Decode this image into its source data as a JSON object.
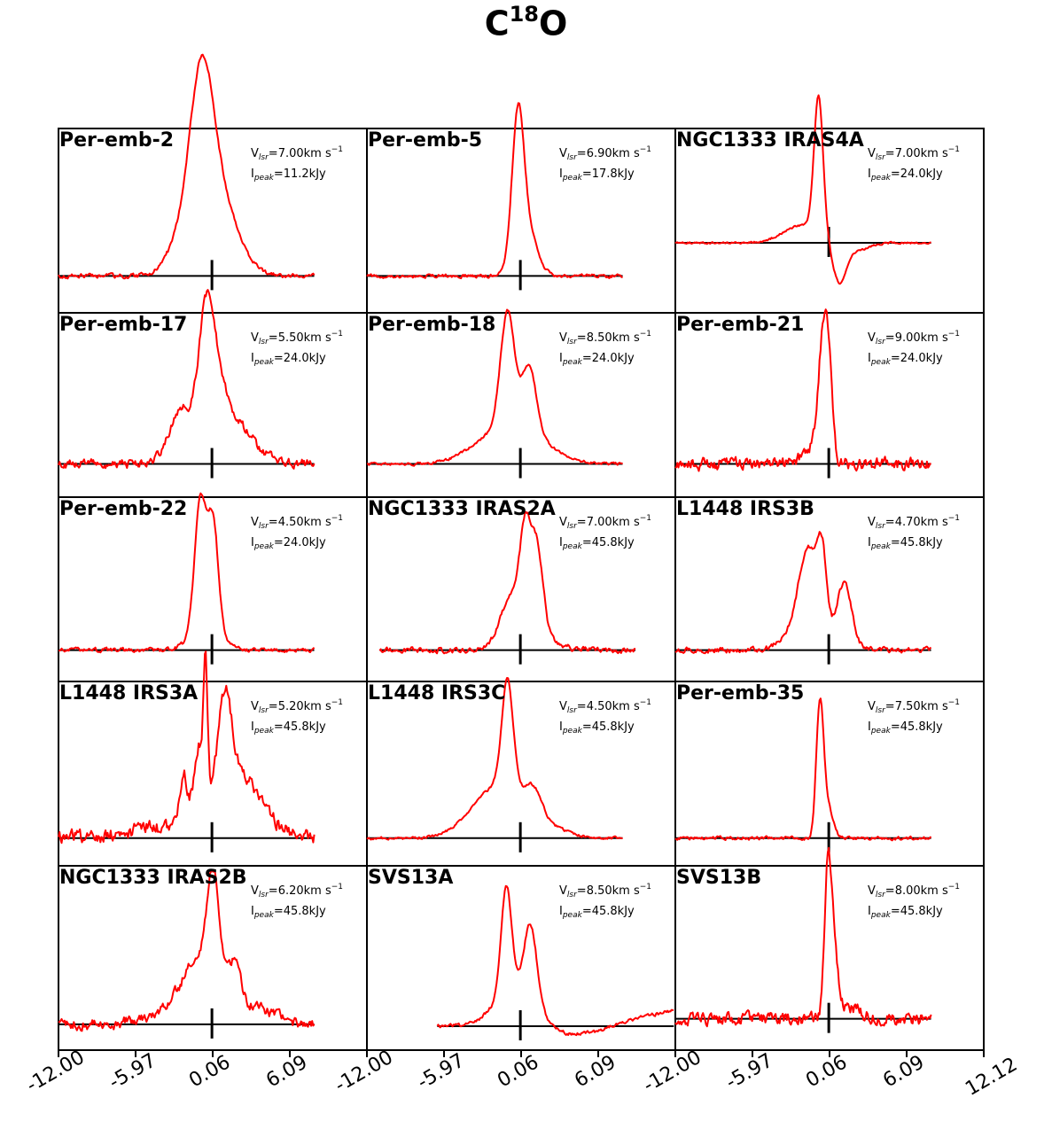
{
  "title": {
    "main": "C",
    "sup": "18",
    "tail": "O"
  },
  "chart_data": {
    "type": "line",
    "layout": {
      "rows": 5,
      "cols": 3
    },
    "line_color": "#ff0000",
    "x_ticks": {
      "panel_labels": [
        "-12.00",
        "-5.97",
        "0.06",
        "6.09"
      ],
      "last_label": "12.12"
    },
    "xlim": [
      -12.0,
      12.12
    ],
    "panels": [
      {
        "name": "Per-emb-2",
        "vlsr": "7.00",
        "ipeak": "11.2",
        "baseline": 0.8,
        "xrange": [
          -12,
          8
        ],
        "components": [
          [
            -0.8,
            0.9,
            0.93
          ],
          [
            0.4,
            1.5,
            0.55
          ],
          [
            -2.0,
            1.3,
            0.25
          ]
        ],
        "noise": 0.012,
        "seed": 2
      },
      {
        "name": "Per-emb-5",
        "vlsr": "6.90",
        "ipeak": "17.8",
        "baseline": 0.8,
        "xrange": [
          -12,
          8
        ],
        "components": [
          [
            -0.2,
            0.45,
            0.9
          ],
          [
            0.4,
            0.8,
            0.35
          ]
        ],
        "noise": 0.01,
        "seed": 5
      },
      {
        "name": "NGC1333 IRAS4A",
        "vlsr": "7.00",
        "ipeak": "24.0",
        "baseline": 0.62,
        "xrange": [
          -12,
          8
        ],
        "components": [
          [
            -0.8,
            0.35,
            0.92
          ],
          [
            -2.0,
            1.5,
            0.12
          ],
          [
            0.8,
            0.5,
            -0.25
          ],
          [
            1.8,
            1.2,
            -0.06
          ]
        ],
        "noise": 0.006,
        "seed": 4
      },
      {
        "name": "Per-emb-17",
        "vlsr": "5.50",
        "ipeak": "24.0",
        "baseline": 0.82,
        "xrange": [
          -12,
          8
        ],
        "components": [
          [
            -0.5,
            0.6,
            0.75
          ],
          [
            0.3,
            0.7,
            0.3
          ],
          [
            -2.5,
            0.8,
            0.3
          ],
          [
            1.5,
            1.5,
            0.22
          ],
          [
            0.0,
            2.5,
            0.12
          ]
        ],
        "noise": 0.025,
        "seed": 17
      },
      {
        "name": "Per-emb-18",
        "vlsr": "8.50",
        "ipeak": "24.0",
        "baseline": 0.82,
        "xrange": [
          -12,
          8
        ],
        "components": [
          [
            -1.0,
            0.55,
            0.78
          ],
          [
            0.7,
            0.55,
            0.45
          ],
          [
            -1.5,
            2.2,
            0.2
          ],
          [
            1.0,
            2.0,
            0.1
          ]
        ],
        "noise": 0.008,
        "seed": 18
      },
      {
        "name": "Per-emb-21",
        "vlsr": "9.00",
        "ipeak": "24.0",
        "baseline": 0.82,
        "xrange": [
          -12,
          8
        ],
        "components": [
          [
            -0.5,
            0.35,
            0.75
          ],
          [
            0.0,
            0.3,
            0.6
          ],
          [
            -1.5,
            0.6,
            0.1
          ]
        ],
        "noise": 0.035,
        "seed": 21
      },
      {
        "name": "Per-emb-22",
        "vlsr": "4.50",
        "ipeak": "24.0",
        "baseline": 0.83,
        "xrange": [
          -12,
          8
        ],
        "components": [
          [
            -0.9,
            0.45,
            0.88
          ],
          [
            0.1,
            0.4,
            0.72
          ],
          [
            -0.4,
            1.2,
            0.15
          ]
        ],
        "noise": 0.012,
        "seed": 22
      },
      {
        "name": "NGC1333 IRAS2A",
        "vlsr": "7.00",
        "ipeak": "45.8",
        "baseline": 0.83,
        "xrange": [
          -11,
          9
        ],
        "components": [
          [
            0.4,
            0.4,
            0.55
          ],
          [
            1.3,
            0.45,
            0.55
          ],
          [
            -0.6,
            0.9,
            0.3
          ],
          [
            0.8,
            1.5,
            0.15
          ]
        ],
        "noise": 0.015,
        "seed": 72
      },
      {
        "name": "L1448 IRS3B",
        "vlsr": "4.70",
        "ipeak": "45.8",
        "baseline": 0.83,
        "xrange": [
          -12,
          8
        ],
        "components": [
          [
            -1.5,
            0.8,
            0.65
          ],
          [
            -0.5,
            0.35,
            0.45
          ],
          [
            1.2,
            0.6,
            0.45
          ],
          [
            -2.8,
            1.0,
            0.1
          ]
        ],
        "noise": 0.015,
        "seed": 33
      },
      {
        "name": "L1448 IRS3A",
        "vlsr": "5.20",
        "ipeak": "45.8",
        "baseline": 0.85,
        "xrange": [
          -12,
          8
        ],
        "components": [
          [
            -0.5,
            0.15,
            0.8
          ],
          [
            1.0,
            0.5,
            0.62
          ],
          [
            -1.0,
            0.4,
            0.45
          ],
          [
            2.0,
            1.6,
            0.35
          ],
          [
            -2.2,
            0.3,
            0.3
          ],
          [
            0.0,
            4.0,
            0.12
          ],
          [
            -5.5,
            0.4,
            0.06
          ]
        ],
        "noise": 0.04,
        "seed": 13
      },
      {
        "name": "L1448 IRS3C",
        "vlsr": "4.50",
        "ipeak": "45.8",
        "baseline": 0.85,
        "xrange": [
          -12,
          8
        ],
        "components": [
          [
            -1.0,
            0.45,
            0.75
          ],
          [
            -1.8,
            2.0,
            0.35
          ],
          [
            1.0,
            0.7,
            0.2
          ],
          [
            2.5,
            1.5,
            0.05
          ]
        ],
        "noise": 0.008,
        "seed": 43
      },
      {
        "name": "Per-emb-35",
        "vlsr": "7.50",
        "ipeak": "45.8",
        "baseline": 0.85,
        "xrange": [
          -12,
          8
        ],
        "components": [
          [
            -0.7,
            0.28,
            0.88
          ],
          [
            -0.1,
            0.4,
            0.22
          ]
        ],
        "noise": 0.01,
        "seed": 35
      },
      {
        "name": "NGC1333 IRAS2B",
        "vlsr": "6.20",
        "ipeak": "45.8",
        "baseline": 0.86,
        "xrange": [
          -12,
          8
        ],
        "components": [
          [
            0.1,
            0.45,
            0.65
          ],
          [
            -0.8,
            1.4,
            0.35
          ],
          [
            1.8,
            0.4,
            0.25
          ],
          [
            2.5,
            2.0,
            0.12
          ],
          [
            -2.0,
            2.5,
            0.1
          ]
        ],
        "noise": 0.03,
        "seed": 62
      },
      {
        "name": "SVS13A",
        "vlsr": "8.50",
        "ipeak": "45.8",
        "baseline": 0.87,
        "xrange": [
          -6.5,
          12
        ],
        "components": [
          [
            -1.1,
            0.4,
            0.72
          ],
          [
            0.8,
            0.5,
            0.5
          ],
          [
            -0.3,
            1.6,
            0.28
          ]
        ],
        "ramp": [
          6.0,
          0.11
        ],
        "dip": [
          3.5,
          2.5,
          -0.06
        ],
        "noise": 0.01,
        "seed": 13
      },
      {
        "name": "SVS13B",
        "vlsr": "8.00",
        "ipeak": "45.8",
        "baseline": 0.83,
        "xrange": [
          -12,
          8
        ],
        "components": [
          [
            -0.1,
            0.25,
            0.78
          ],
          [
            0.3,
            0.35,
            0.55
          ],
          [
            1.5,
            1.0,
            0.08
          ]
        ],
        "noise": 0.035,
        "seed": 23
      }
    ]
  }
}
